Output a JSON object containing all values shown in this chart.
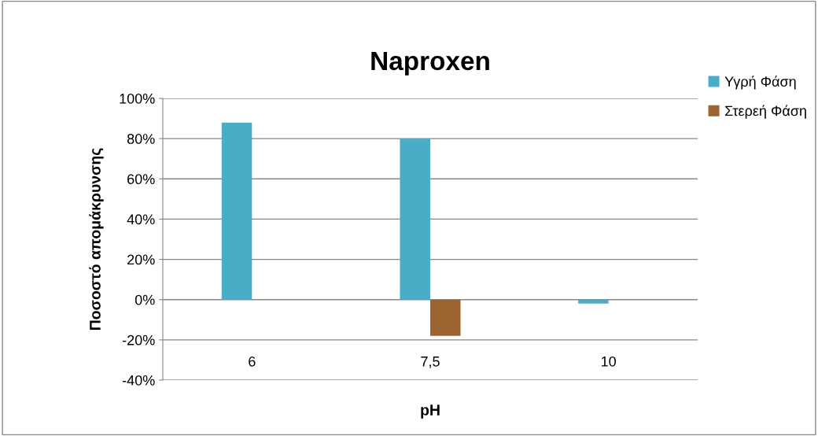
{
  "chart_data": {
    "type": "bar",
    "title": "Naproxen",
    "xlabel": "pH",
    "ylabel": "Ποσοστό απομάκρυνσης",
    "categories": [
      "6",
      "7,5",
      "10"
    ],
    "series": [
      {
        "name": "Υγρή Φάση",
        "color": "#4bacc6",
        "values": [
          88,
          80,
          -2
        ]
      },
      {
        "name": "Στερεή Φάση",
        "color": "#9b6431",
        "values": [
          null,
          -18,
          null
        ]
      }
    ],
    "ylim": [
      -40,
      100
    ],
    "yticks": [
      {
        "value": -40,
        "label": "-40%"
      },
      {
        "value": -20,
        "label": "-20%"
      },
      {
        "value": 0,
        "label": "0%"
      },
      {
        "value": 20,
        "label": "20%"
      },
      {
        "value": 40,
        "label": "40%"
      },
      {
        "value": 60,
        "label": "60%"
      },
      {
        "value": 80,
        "label": "80%"
      },
      {
        "value": 100,
        "label": "100%"
      }
    ],
    "grid": "y",
    "legend": "top right"
  }
}
